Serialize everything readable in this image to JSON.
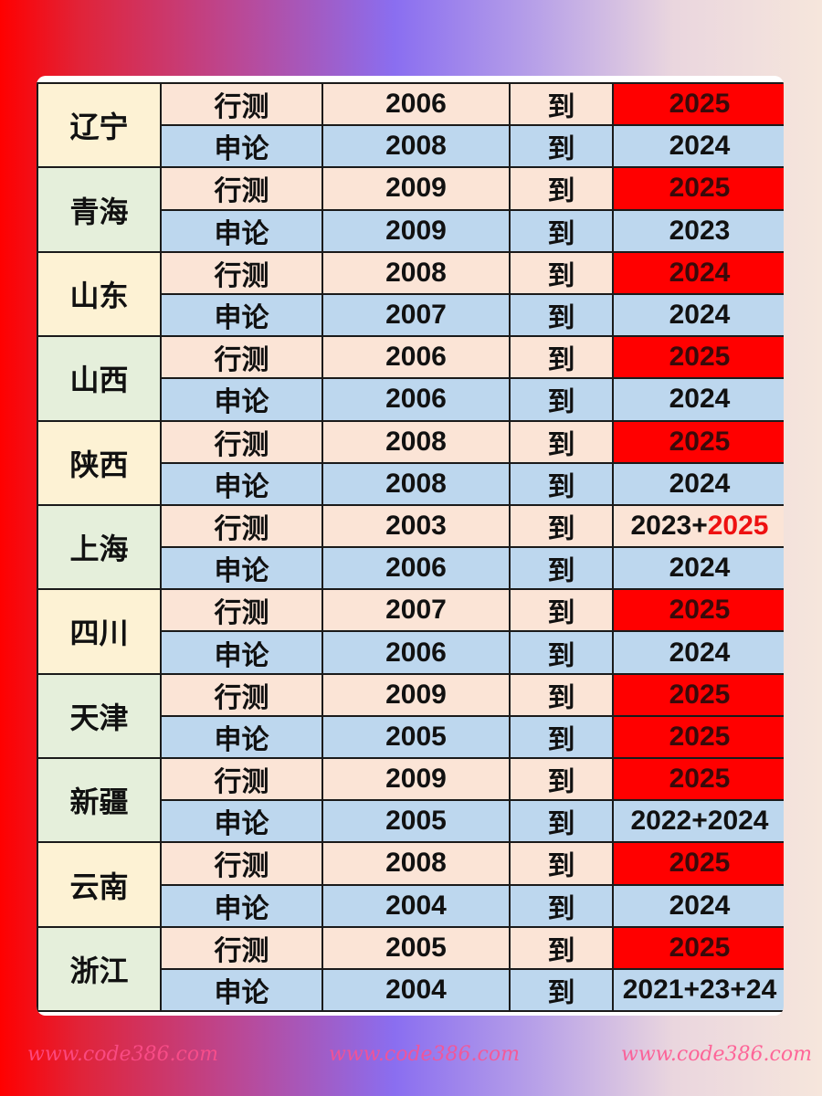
{
  "subject_labels": [
    "行测",
    "申论"
  ],
  "to_label": "到",
  "colors": {
    "highlight": "#ff0000",
    "row_xingce": "#fbe4d6",
    "row_shenlun": "#bdd7ee",
    "province_cream": "#fdf2d4",
    "province_green": "#e5efdb"
  },
  "watermark": "www.code386.com",
  "provinces": [
    {
      "name": "辽宁",
      "shade": "cream",
      "rows": [
        {
          "subject": "行测",
          "start": "2006",
          "end": [
            {
              "t": "2025"
            }
          ],
          "highlight": true
        },
        {
          "subject": "申论",
          "start": "2008",
          "end": [
            {
              "t": "2024"
            }
          ],
          "highlight": false
        }
      ]
    },
    {
      "name": "青海",
      "shade": "green",
      "rows": [
        {
          "subject": "行测",
          "start": "2009",
          "end": [
            {
              "t": "2025"
            }
          ],
          "highlight": true
        },
        {
          "subject": "申论",
          "start": "2009",
          "end": [
            {
              "t": "2023"
            }
          ],
          "highlight": false
        }
      ]
    },
    {
      "name": "山东",
      "shade": "cream",
      "rows": [
        {
          "subject": "行测",
          "start": "2008",
          "end": [
            {
              "t": "2024"
            }
          ],
          "highlight": true
        },
        {
          "subject": "申论",
          "start": "2007",
          "end": [
            {
              "t": "2024"
            }
          ],
          "highlight": false
        }
      ]
    },
    {
      "name": "山西",
      "shade": "green",
      "rows": [
        {
          "subject": "行测",
          "start": "2006",
          "end": [
            {
              "t": "2025"
            }
          ],
          "highlight": true
        },
        {
          "subject": "申论",
          "start": "2006",
          "end": [
            {
              "t": "2024"
            }
          ],
          "highlight": false
        }
      ]
    },
    {
      "name": "陕西",
      "shade": "cream",
      "rows": [
        {
          "subject": "行测",
          "start": "2008",
          "end": [
            {
              "t": "2025"
            }
          ],
          "highlight": true
        },
        {
          "subject": "申论",
          "start": "2008",
          "end": [
            {
              "t": "2024"
            }
          ],
          "highlight": false
        }
      ]
    },
    {
      "name": "上海",
      "shade": "green",
      "rows": [
        {
          "subject": "行测",
          "start": "2003",
          "end": [
            {
              "t": "2023+"
            },
            {
              "t": "2025",
              "red": true
            }
          ],
          "highlight": false
        },
        {
          "subject": "申论",
          "start": "2006",
          "end": [
            {
              "t": "2024"
            }
          ],
          "highlight": false
        }
      ]
    },
    {
      "name": "四川",
      "shade": "cream",
      "rows": [
        {
          "subject": "行测",
          "start": "2007",
          "end": [
            {
              "t": "2025"
            }
          ],
          "highlight": true
        },
        {
          "subject": "申论",
          "start": "2006",
          "end": [
            {
              "t": "2024"
            }
          ],
          "highlight": false
        }
      ]
    },
    {
      "name": "天津",
      "shade": "green",
      "rows": [
        {
          "subject": "行测",
          "start": "2009",
          "end": [
            {
              "t": "2025"
            }
          ],
          "highlight": true
        },
        {
          "subject": "申论",
          "start": "2005",
          "end": [
            {
              "t": "2025"
            }
          ],
          "highlight": true
        }
      ]
    },
    {
      "name": "新疆",
      "shade": "green",
      "rows": [
        {
          "subject": "行测",
          "start": "2009",
          "end": [
            {
              "t": "2025"
            }
          ],
          "highlight": true
        },
        {
          "subject": "申论",
          "start": "2005",
          "end": [
            {
              "t": "2022+2024"
            }
          ],
          "highlight": false
        }
      ]
    },
    {
      "name": "云南",
      "shade": "cream",
      "rows": [
        {
          "subject": "行测",
          "start": "2008",
          "end": [
            {
              "t": "2025"
            }
          ],
          "highlight": true
        },
        {
          "subject": "申论",
          "start": "2004",
          "end": [
            {
              "t": "2024"
            }
          ],
          "highlight": false
        }
      ]
    },
    {
      "name": "浙江",
      "shade": "green",
      "rows": [
        {
          "subject": "行测",
          "start": "2005",
          "end": [
            {
              "t": "2025"
            }
          ],
          "highlight": true
        },
        {
          "subject": "申论",
          "start": "2004",
          "end": [
            {
              "t": "2021+23+24"
            }
          ],
          "highlight": false
        }
      ]
    }
  ]
}
